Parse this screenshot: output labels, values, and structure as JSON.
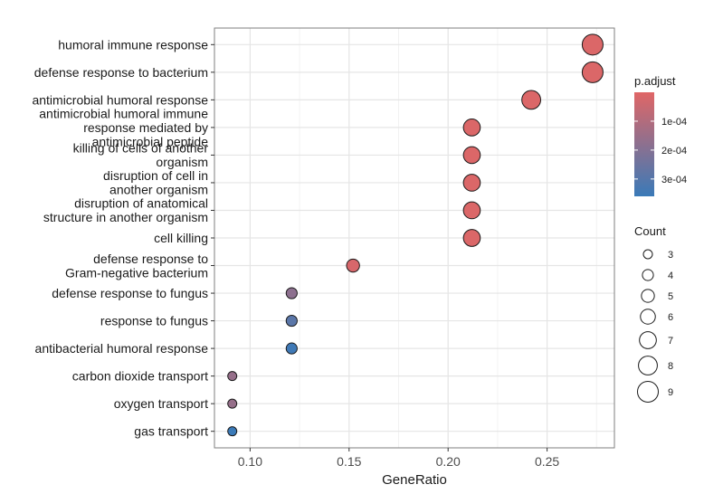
{
  "chart_data": {
    "type": "scatter",
    "title": "",
    "xlabel": "GeneRatio",
    "ylabel": "",
    "xlim": [
      0.082,
      0.284
    ],
    "x_ticks": [
      0.1,
      0.15,
      0.2,
      0.25
    ],
    "x_tick_labels": [
      "0.10",
      "0.15",
      "0.20",
      "0.25"
    ],
    "grid": true,
    "legend_position": "right",
    "categories": [
      "humoral immune response",
      "defense response to bacterium",
      "antimicrobial humoral response",
      "antimicrobial humoral immune\nresponse mediated by\nantimicrobial peptide",
      "killing of cells of another\norganism",
      "disruption of cell in\nanother organism",
      "disruption of anatomical\nstructure in another organism",
      "cell killing",
      "defense response to\nGram-negative bacterium",
      "defense response to fungus",
      "response to fungus",
      "antibacterial humoral response",
      "carbon dioxide transport",
      "oxygen transport",
      "gas transport"
    ],
    "points": [
      {
        "term": "humoral immune response",
        "gene_ratio": 0.273,
        "count": 9,
        "p_adjust": 1e-05
      },
      {
        "term": "defense response to bacterium",
        "gene_ratio": 0.273,
        "count": 9,
        "p_adjust": 1e-05
      },
      {
        "term": "antimicrobial humoral response",
        "gene_ratio": 0.242,
        "count": 8,
        "p_adjust": 1e-05
      },
      {
        "term": "antimicrobial humoral immune response mediated by antimicrobial peptide",
        "gene_ratio": 0.212,
        "count": 7,
        "p_adjust": 1e-05
      },
      {
        "term": "killing of cells of another organism",
        "gene_ratio": 0.212,
        "count": 7,
        "p_adjust": 1e-05
      },
      {
        "term": "disruption of cell in another organism",
        "gene_ratio": 0.212,
        "count": 7,
        "p_adjust": 1e-05
      },
      {
        "term": "disruption of anatomical structure in another organism",
        "gene_ratio": 0.212,
        "count": 7,
        "p_adjust": 1e-05
      },
      {
        "term": "cell killing",
        "gene_ratio": 0.212,
        "count": 7,
        "p_adjust": 1e-05
      },
      {
        "term": "defense response to Gram-negative bacterium",
        "gene_ratio": 0.152,
        "count": 5,
        "p_adjust": 2e-05
      },
      {
        "term": "defense response to fungus",
        "gene_ratio": 0.121,
        "count": 4,
        "p_adjust": 0.00018
      },
      {
        "term": "response to fungus",
        "gene_ratio": 0.121,
        "count": 4,
        "p_adjust": 0.00029
      },
      {
        "term": "antibacterial humoral response",
        "gene_ratio": 0.121,
        "count": 4,
        "p_adjust": 0.00035
      },
      {
        "term": "carbon dioxide transport",
        "gene_ratio": 0.091,
        "count": 3,
        "p_adjust": 0.00016
      },
      {
        "term": "oxygen transport",
        "gene_ratio": 0.091,
        "count": 3,
        "p_adjust": 0.00016
      },
      {
        "term": "gas transport",
        "gene_ratio": 0.091,
        "count": 3,
        "p_adjust": 0.00036
      }
    ],
    "color_legend": {
      "title": "p.adjust",
      "min": 0.0,
      "max": 0.00036,
      "color_low": "#e06666",
      "color_high": "#3a7ab8",
      "ticks": [
        0.0001,
        0.0002,
        0.0003
      ],
      "tick_labels": [
        "1e-04",
        "2e-04",
        "3e-04"
      ]
    },
    "size_legend": {
      "title": "Count",
      "values": [
        3,
        4,
        5,
        6,
        7,
        8,
        9
      ],
      "labels": [
        "3",
        "4",
        "5",
        "6",
        "7",
        "8",
        "9"
      ]
    },
    "colors": {
      "panel_border": "#7f7f7f",
      "grid_major": "#e5e5e5",
      "grid_minor": "#f2f2f2",
      "point_stroke": "#1a1a1a"
    }
  }
}
